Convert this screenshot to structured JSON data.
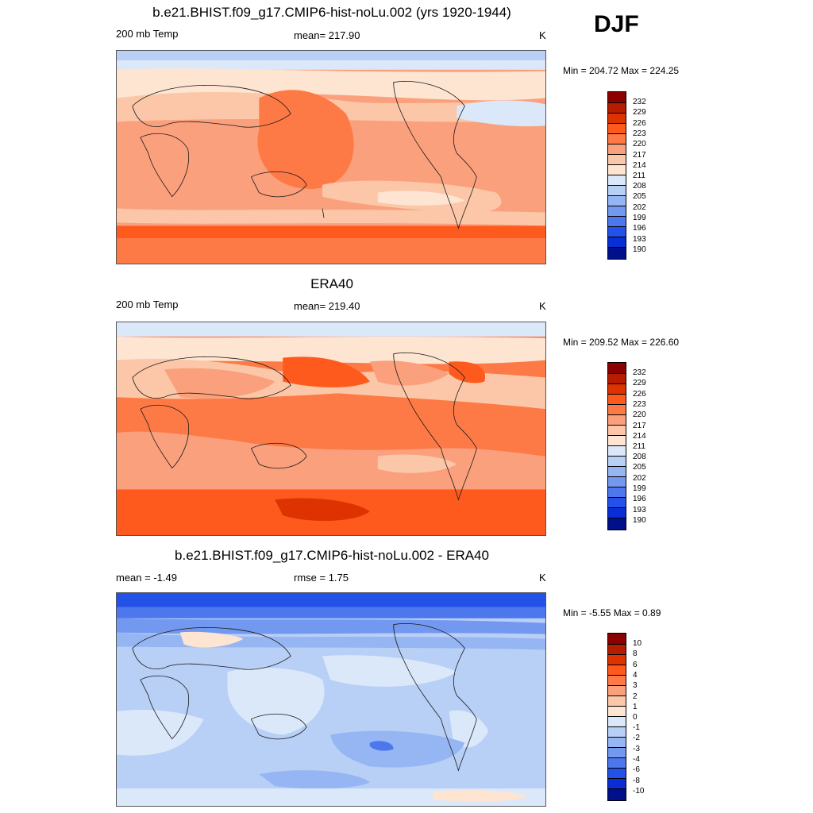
{
  "season": "DJF",
  "palette_warm": [
    "#8b0000",
    "#b51c00",
    "#de3300",
    "#ff5a1e",
    "#fd7a46",
    "#fba07c",
    "#fbc7a8",
    "#fde5d2"
  ],
  "palette_cool": [
    "#dbe8fa",
    "#b8cff6",
    "#96b5f3",
    "#7398f0",
    "#4d77ed",
    "#2452e8",
    "#0a2ed5",
    "#00108a"
  ],
  "panels": [
    {
      "title": "b.e21.BHIST.f09_g17.CMIP6-hist-noLu.002 (yrs 1920-1944)",
      "left_label": "200 mb Temp",
      "center_label": "mean= 217.90",
      "units": "K",
      "minmax": "Min = 204.72 Max = 224.25",
      "colorbar_labels": [
        "232",
        "229",
        "226",
        "223",
        "220",
        "217",
        "214",
        "211",
        "208",
        "205",
        "202",
        "199",
        "196",
        "193",
        "190"
      ]
    },
    {
      "title": "ERA40",
      "left_label": "200 mb Temp",
      "center_label": "mean= 219.40",
      "units": "K",
      "minmax": "Min = 209.52 Max = 226.60",
      "colorbar_labels": [
        "232",
        "229",
        "226",
        "223",
        "220",
        "217",
        "214",
        "211",
        "208",
        "205",
        "202",
        "199",
        "196",
        "193",
        "190"
      ]
    },
    {
      "title": "b.e21.BHIST.f09_g17.CMIP6-hist-noLu.002 - ERA40",
      "left_label": "mean =  -1.49",
      "center_label": "rmse =   1.75",
      "units": "K",
      "minmax": "Min =  -5.55 Max =   0.89",
      "colorbar_labels": [
        "10",
        "8",
        "6",
        "4",
        "3",
        "2",
        "1",
        "0",
        "-1",
        "-2",
        "-3",
        "-4",
        "-6",
        "-8",
        "-10"
      ]
    }
  ]
}
